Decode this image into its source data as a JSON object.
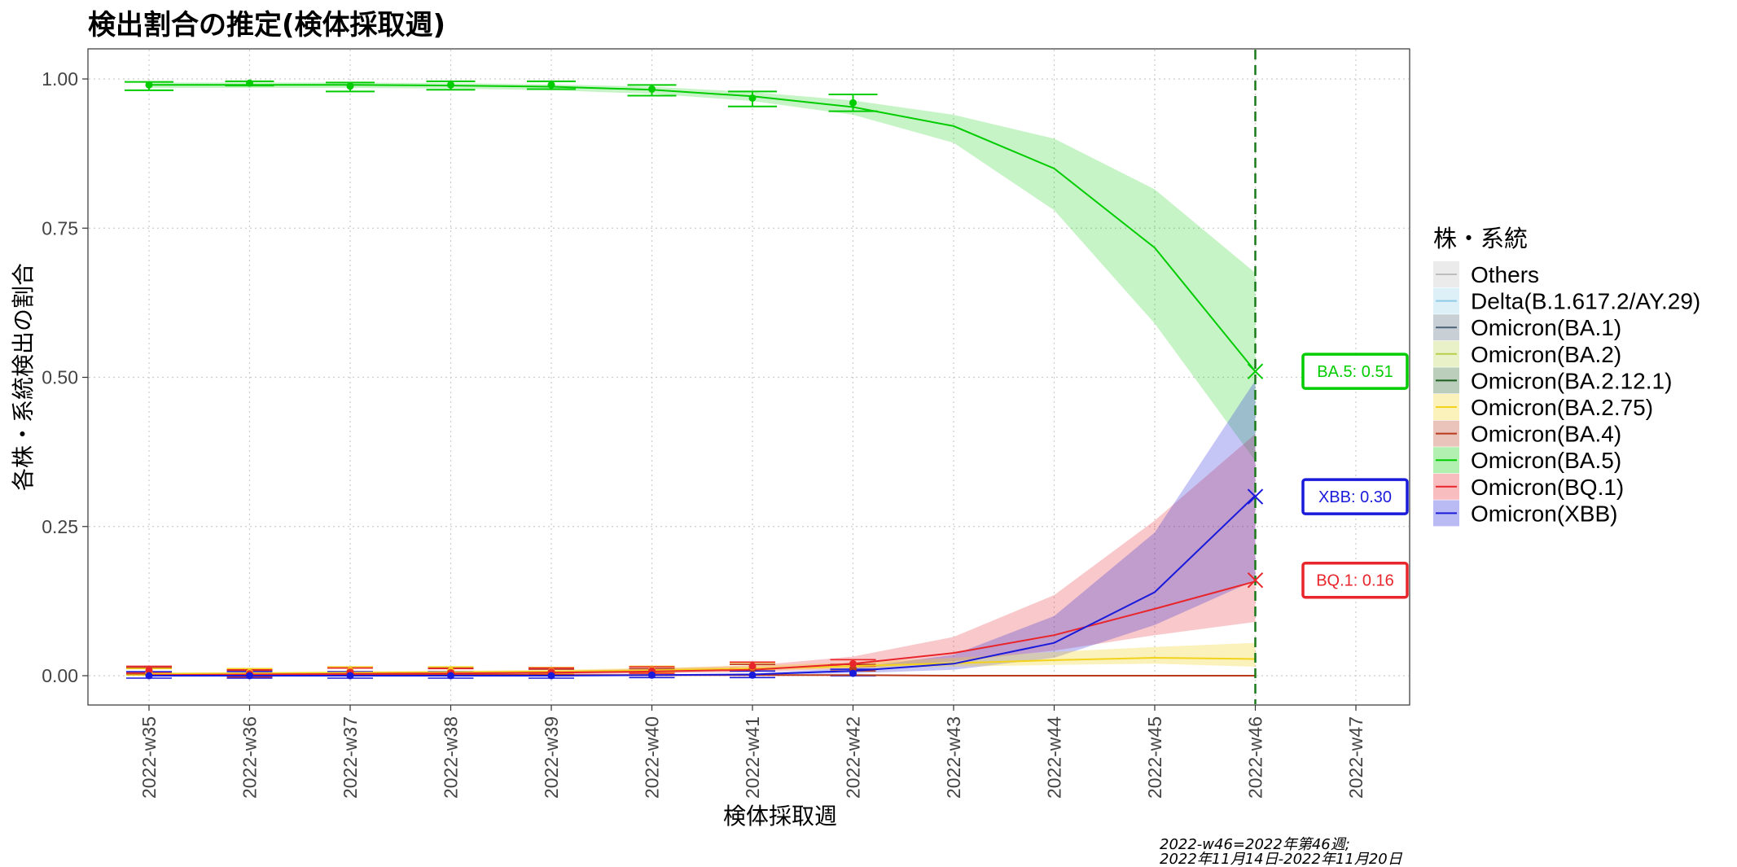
{
  "chart_data": {
    "type": "line",
    "title": "検出割合の推定(検体採取週)",
    "xlabel": "検体採取週",
    "ylabel": "各株・系統検出の割合",
    "categories": [
      "2022-w35",
      "2022-w36",
      "2022-w37",
      "2022-w38",
      "2022-w39",
      "2022-w40",
      "2022-w41",
      "2022-w42",
      "2022-w43",
      "2022-w44",
      "2022-w45",
      "2022-w46",
      "2022-w47"
    ],
    "ylim": [
      -0.05,
      1.05
    ],
    "yticks": [
      "0.00",
      "0.25",
      "0.50",
      "0.75",
      "1.00"
    ],
    "grid": true,
    "reference_line": {
      "x": "2022-w46",
      "color": "#1a7a1a"
    },
    "legend": {
      "title": "株・系統",
      "position": "right",
      "items": [
        {
          "name": "Others",
          "color": "#bdbdbd"
        },
        {
          "name": "Delta(B.1.617.2/AY.29)",
          "color": "#8ecae6"
        },
        {
          "name": "Omicron(BA.1)",
          "color": "#4a6278"
        },
        {
          "name": "Omicron(BA.2)",
          "color": "#b5cf49"
        },
        {
          "name": "Omicron(BA.2.12.1)",
          "color": "#1e5e1e"
        },
        {
          "name": "Omicron(BA.2.75)",
          "color": "#f2d21b"
        },
        {
          "name": "Omicron(BA.4)",
          "color": "#b8391c"
        },
        {
          "name": "Omicron(BA.5)",
          "color": "#00cc00"
        },
        {
          "name": "Omicron(BQ.1)",
          "color": "#e8252b"
        },
        {
          "name": "Omicron(XBB)",
          "color": "#1a1adb"
        }
      ]
    },
    "series": [
      {
        "name": "Omicron(BA.5)",
        "color": "#00cc00",
        "fit_x": [
          "2022-w35",
          "2022-w36",
          "2022-w37",
          "2022-w38",
          "2022-w39",
          "2022-w40",
          "2022-w41",
          "2022-w42",
          "2022-w43",
          "2022-w44",
          "2022-w45",
          "2022-w46"
        ],
        "fit": [
          0.99,
          0.99,
          0.99,
          0.989,
          0.987,
          0.982,
          0.971,
          0.953,
          0.921,
          0.85,
          0.717,
          0.51
        ],
        "lower": [
          0.985,
          0.985,
          0.985,
          0.984,
          0.981,
          0.975,
          0.963,
          0.94,
          0.893,
          0.78,
          0.59,
          0.36
        ],
        "upper": [
          0.994,
          0.994,
          0.994,
          0.993,
          0.991,
          0.987,
          0.978,
          0.964,
          0.94,
          0.9,
          0.815,
          0.675
        ],
        "obs": [
          0.99,
          0.993,
          0.988,
          0.99,
          0.99,
          0.983,
          0.968,
          0.96
        ],
        "obs_low": [
          0.981,
          0.989,
          0.979,
          0.982,
          0.983,
          0.972,
          0.954,
          0.946
        ],
        "obs_high": [
          0.995,
          0.996,
          0.994,
          0.996,
          0.996,
          0.99,
          0.979,
          0.974
        ]
      },
      {
        "name": "Omicron(XBB)",
        "color": "#1a1adb",
        "fit_x": [
          "2022-w35",
          "2022-w36",
          "2022-w37",
          "2022-w38",
          "2022-w39",
          "2022-w40",
          "2022-w41",
          "2022-w42",
          "2022-w43",
          "2022-w44",
          "2022-w45",
          "2022-w46"
        ],
        "fit": [
          0.0,
          0.0,
          0.0,
          0.0,
          0.0,
          0.001,
          0.002,
          0.008,
          0.02,
          0.055,
          0.14,
          0.302
        ],
        "lower": [
          0.0,
          0.0,
          0.0,
          0.0,
          0.0,
          0.0,
          0.001,
          0.004,
          0.01,
          0.03,
          0.085,
          0.16
        ],
        "upper": [
          0.0,
          0.0,
          0.0,
          0.0,
          0.001,
          0.002,
          0.004,
          0.013,
          0.035,
          0.1,
          0.24,
          0.495
        ],
        "obs": [
          0.0,
          0.0,
          0.0,
          0.0,
          0.0,
          0.001,
          0.001,
          0.004
        ]
      },
      {
        "name": "Omicron(BQ.1)",
        "color": "#e8252b",
        "fit_x": [
          "2022-w35",
          "2022-w36",
          "2022-w37",
          "2022-w38",
          "2022-w39",
          "2022-w40",
          "2022-w41",
          "2022-w42",
          "2022-w43",
          "2022-w44",
          "2022-w45",
          "2022-w46"
        ],
        "fit": [
          0.001,
          0.002,
          0.003,
          0.004,
          0.005,
          0.007,
          0.01,
          0.02,
          0.038,
          0.068,
          0.112,
          0.158
        ],
        "lower": [
          0.0,
          0.0,
          0.001,
          0.001,
          0.002,
          0.004,
          0.006,
          0.012,
          0.024,
          0.042,
          0.068,
          0.09
        ],
        "upper": [
          0.003,
          0.004,
          0.005,
          0.006,
          0.008,
          0.012,
          0.017,
          0.032,
          0.065,
          0.135,
          0.26,
          0.405
        ],
        "obs": [
          0.009,
          0.003,
          0.006,
          0.005,
          0.006,
          0.008,
          0.016,
          0.02
        ]
      },
      {
        "name": "Omicron(BA.2.75)",
        "color": "#f2d21b",
        "fit_x": [
          "2022-w35",
          "2022-w36",
          "2022-w37",
          "2022-w38",
          "2022-w39",
          "2022-w40",
          "2022-w41",
          "2022-w42",
          "2022-w43",
          "2022-w44",
          "2022-w45",
          "2022-w46"
        ],
        "fit": [
          0.003,
          0.004,
          0.005,
          0.006,
          0.007,
          0.009,
          0.012,
          0.016,
          0.021,
          0.026,
          0.03,
          0.028
        ],
        "lower": [
          0.001,
          0.002,
          0.003,
          0.004,
          0.005,
          0.006,
          0.009,
          0.012,
          0.015,
          0.018,
          0.02,
          0.015
        ],
        "upper": [
          0.005,
          0.006,
          0.007,
          0.008,
          0.01,
          0.013,
          0.017,
          0.022,
          0.03,
          0.04,
          0.048,
          0.055
        ],
        "obs": [
          0.005,
          0.005,
          0.008,
          0.008,
          0.007,
          0.009,
          0.015,
          0.02
        ]
      },
      {
        "name": "Omicron(BA.4)",
        "color": "#b8391c",
        "fit_x": [
          "2022-w35",
          "2022-w36",
          "2022-w37",
          "2022-w38",
          "2022-w39",
          "2022-w40",
          "2022-w41",
          "2022-w42",
          "2022-w43",
          "2022-w44",
          "2022-w45",
          "2022-w46"
        ],
        "fit": [
          0.002,
          0.002,
          0.002,
          0.002,
          0.001,
          0.001,
          0.001,
          0.001,
          0.0,
          0.0,
          0.0,
          0.0
        ],
        "lower": [
          0.0,
          0.0,
          0.0,
          0.0,
          0.0,
          0.0,
          0.0,
          0.0,
          0.0,
          0.0,
          0.0,
          0.0
        ],
        "upper": [
          0.004,
          0.004,
          0.004,
          0.003,
          0.003,
          0.002,
          0.002,
          0.001,
          0.001,
          0.001,
          0.0,
          0.0
        ],
        "obs": [
          0.007,
          0.002,
          0.006,
          0.006,
          0.004,
          0.005,
          0.012,
          0.012
        ]
      }
    ],
    "annotations": [
      {
        "text": "BA.5: 0.51",
        "x": "2022-w46",
        "y": 0.51,
        "color": "#00cc00"
      },
      {
        "text": "XBB: 0.30",
        "x": "2022-w46",
        "y": 0.3,
        "color": "#1a1adb"
      },
      {
        "text": "BQ.1: 0.16",
        "x": "2022-w46",
        "y": 0.16,
        "color": "#e8252b"
      }
    ],
    "caption": [
      "2022-w46=2022年第46週;",
      "2022年11月14日-2022年11月20日"
    ]
  }
}
